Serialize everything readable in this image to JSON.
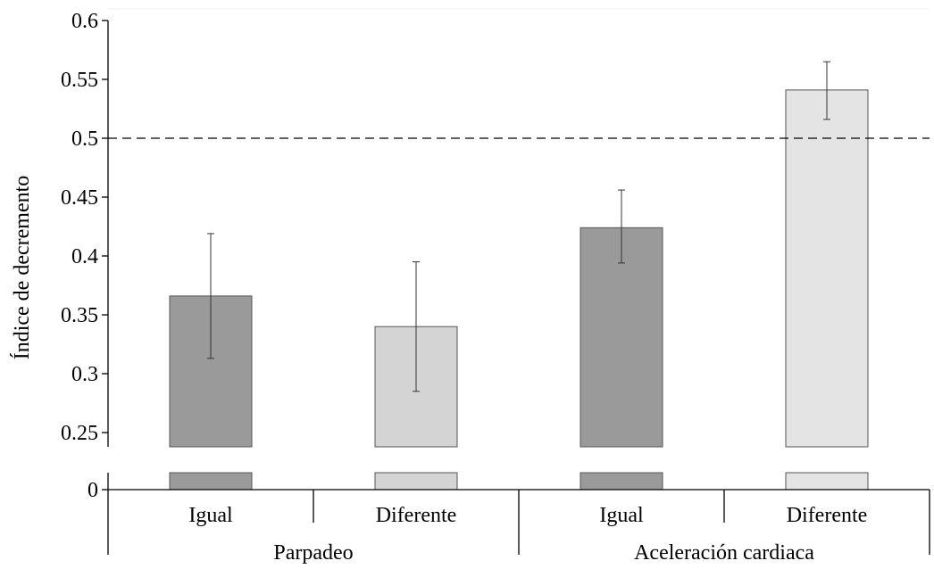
{
  "chart_data": {
    "type": "bar",
    "title": "",
    "ylabel": "Índice de decremento",
    "xlabel": "",
    "ylim": [
      0.25,
      0.6
    ],
    "y_break": true,
    "y_zero_label": "0",
    "yticks": [
      {
        "value": 0.6,
        "label": "0.6"
      },
      {
        "value": 0.55,
        "label": "0.55"
      },
      {
        "value": 0.5,
        "label": "0.5"
      },
      {
        "value": 0.45,
        "label": "0.45"
      },
      {
        "value": 0.4,
        "label": "0.4"
      },
      {
        "value": 0.35,
        "label": "0.35"
      },
      {
        "value": 0.3,
        "label": "0.3"
      },
      {
        "value": 0.25,
        "label": "0.25"
      }
    ],
    "reference_line": 0.5,
    "groups": [
      {
        "label": "Parpadeo"
      },
      {
        "label": "Aceleración cardiaca"
      }
    ],
    "bars": [
      {
        "group": "Parpadeo",
        "category": "Igual",
        "value": 0.366,
        "err_low": 0.313,
        "err_high": 0.419,
        "color": "#9a9a9a"
      },
      {
        "group": "Parpadeo",
        "category": "Diferente",
        "value": 0.34,
        "err_low": 0.285,
        "err_high": 0.395,
        "color": "#d4d4d4"
      },
      {
        "group": "Aceleración cardiaca",
        "category": "Igual",
        "value": 0.424,
        "err_low": 0.394,
        "err_high": 0.456,
        "color": "#9a9a9a"
      },
      {
        "group": "Aceleración cardiaca",
        "category": "Diferente",
        "value": 0.541,
        "err_low": 0.516,
        "err_high": 0.565,
        "color": "#e4e4e4"
      }
    ]
  }
}
